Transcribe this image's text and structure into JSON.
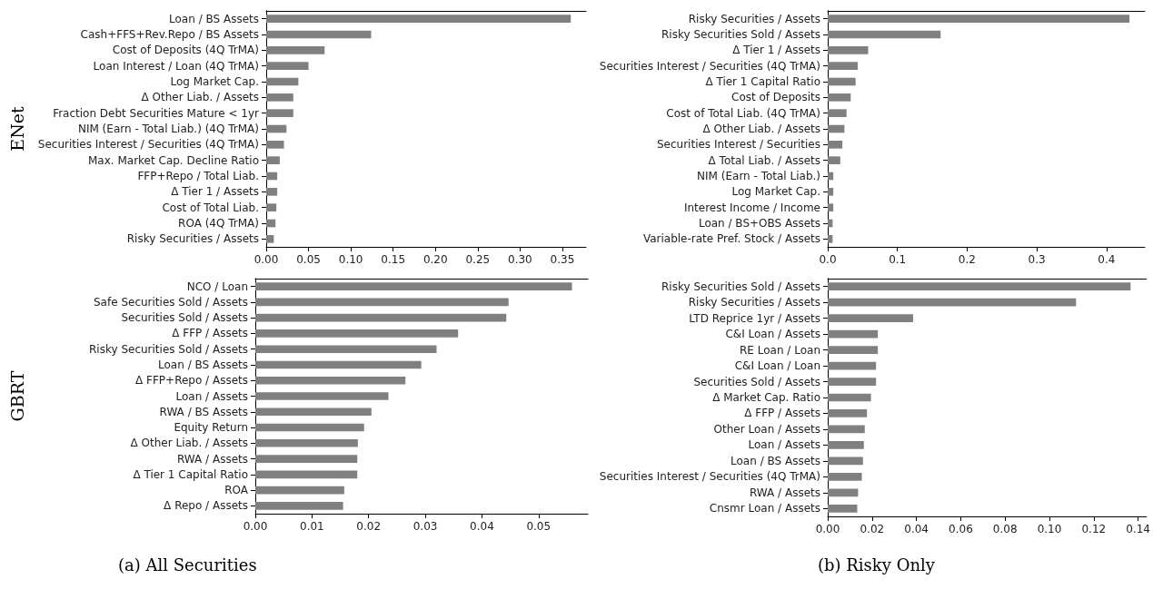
{
  "chart_data": [
    {
      "type": "bar",
      "orientation": "horizontal",
      "ylabel": "ENet",
      "color": "#808080",
      "grid": false,
      "categories": [
        "Loan / BS Assets",
        "Cash+FFS+Rev.Repo / BS Assets",
        "Cost of Deposits (4Q TrMA)",
        "Loan Interest / Loan (4Q TrMA)",
        "Log Market Cap.",
        "Δ Other Liab. / Assets",
        "Fraction Debt Securities Mature < 1yr",
        "NIM (Earn - Total Liab.) (4Q TrMA)",
        "Securities Interest / Securities (4Q TrMA)",
        "Max. Market Cap. Decline Ratio",
        "FFP+Repo / Total Liab.",
        "Δ Tier 1 / Assets",
        "Cost of Total Liab.",
        "ROA (4Q TrMA)",
        "Risky Securities / Assets"
      ],
      "values": [
        0.36,
        0.124,
        0.069,
        0.05,
        0.038,
        0.032,
        0.032,
        0.024,
        0.021,
        0.016,
        0.013,
        0.013,
        0.012,
        0.011,
        0.009
      ],
      "xlim": [
        0,
        0.378
      ],
      "xticks": [
        {
          "value": 0,
          "label": "0.00"
        },
        {
          "value": 0.05,
          "label": "0.05"
        },
        {
          "value": 0.1,
          "label": "0.10"
        },
        {
          "value": 0.15,
          "label": "0.15"
        },
        {
          "value": 0.2,
          "label": "0.20"
        },
        {
          "value": 0.25,
          "label": "0.25"
        },
        {
          "value": 0.3,
          "label": "0.30"
        },
        {
          "value": 0.35,
          "label": "0.35"
        }
      ]
    },
    {
      "type": "bar",
      "orientation": "horizontal",
      "color": "#808080",
      "grid": false,
      "categories": [
        "Risky Securities / Assets",
        "Risky Securities Sold / Assets",
        "Δ Tier 1 / Assets",
        "Securities Interest / Securities (4Q TrMA)",
        "Δ Tier 1 Capital Ratio",
        "Cost of Deposits",
        "Cost of Total Liab. (4Q TrMA)",
        "Δ Other Liab. / Assets",
        "Securities Interest / Securities",
        "Δ Total Liab. / Assets",
        "NIM (Earn - Total Liab.)",
        "Log Market Cap.",
        "Interest Income / Income",
        "Loan / BS+OBS Assets",
        "Variable-rate Pref. Stock / Assets"
      ],
      "values": [
        0.433,
        0.162,
        0.058,
        0.043,
        0.04,
        0.033,
        0.027,
        0.024,
        0.021,
        0.018,
        0.008,
        0.008,
        0.008,
        0.007,
        0.007
      ],
      "xlim": [
        0,
        0.455
      ],
      "xticks": [
        {
          "value": 0,
          "label": "0.0"
        },
        0.1,
        0.2,
        0.3,
        0.4
      ]
    },
    {
      "type": "bar",
      "orientation": "horizontal",
      "ylabel": "GBRT",
      "color": "#808080",
      "grid": false,
      "annotations": [
        "(a) All Securities"
      ],
      "categories": [
        "NCO / Loan",
        "Safe Securities Sold / Assets",
        "Securities Sold / Assets",
        "Δ FFP / Assets",
        "Risky Securities Sold / Assets",
        "Loan / BS Assets",
        "Δ FFP+Repo / Assets",
        "Loan / Assets",
        "RWA / BS Assets",
        "Equity Return",
        "Δ Other Liab. / Assets",
        "RWA / Assets",
        "Δ Tier 1 Capital Ratio",
        "ROA",
        "Δ Repo / Assets"
      ],
      "values": [
        0.0559,
        0.0447,
        0.0443,
        0.0358,
        0.032,
        0.0293,
        0.0265,
        0.0235,
        0.0205,
        0.0192,
        0.0181,
        0.018,
        0.018,
        0.0157,
        0.0155
      ],
      "xlim": [
        0,
        0.0587
      ],
      "xticks": [
        {
          "value": 0,
          "label": "0.00"
        },
        0.01,
        0.02,
        0.03,
        0.04,
        0.05
      ]
    },
    {
      "type": "bar",
      "orientation": "horizontal",
      "color": "#808080",
      "grid": false,
      "annotations": [
        "(b) Risky Only"
      ],
      "categories": [
        "Risky Securities Sold / Assets",
        "Risky Securities / Assets",
        "LTD Reprice 1yr / Assets",
        "C&I Loan / Assets",
        "RE Loan / Loan",
        "C&I Loan / Loan",
        "Securities Sold / Assets",
        "Δ Market Cap. Ratio",
        "Δ FFP / Assets",
        "Other Loan / Assets",
        "Loan / Assets",
        "Loan / BS Assets",
        "Securities Interest / Securities (4Q TrMA)",
        "RWA / Assets",
        "Cnsmr Loan / Assets"
      ],
      "values": [
        0.1366,
        0.112,
        0.0385,
        0.0226,
        0.0226,
        0.0218,
        0.0218,
        0.0195,
        0.0177,
        0.0167,
        0.0163,
        0.0159,
        0.0154,
        0.0137,
        0.0133
      ],
      "xlim": [
        0,
        0.1437
      ],
      "xticks": [
        {
          "value": 0,
          "label": "0.00"
        },
        0.02,
        0.04,
        0.06,
        0.08,
        {
          "value": 0.1,
          "label": "0.10"
        },
        0.12,
        0.14
      ]
    }
  ]
}
